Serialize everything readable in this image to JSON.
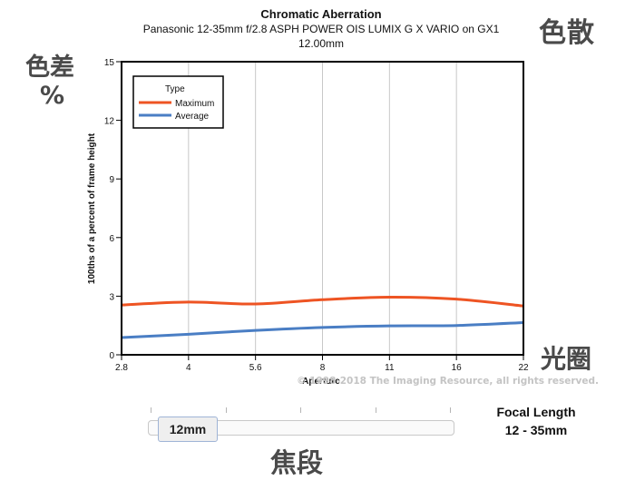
{
  "header": {
    "title": "Chromatic Aberration",
    "lens": "Panasonic 12-35mm f/2.8 ASPH POWER OIS LUMIX G X VARIO on GX1",
    "focal": "12.00mm"
  },
  "overlay": {
    "top_right": "色散",
    "top_left": "色差",
    "percent": "%",
    "right": "光圈",
    "bottom": "焦段"
  },
  "watermark": "© 1998-2018 The Imaging Resource, all rights reserved.",
  "slider": {
    "value": "12mm",
    "label": "Focal Length",
    "range": "12 - 35mm",
    "tick_count": 5,
    "position": 0
  },
  "colors": {
    "maximum": "#ee5423",
    "average": "#4a7ec4",
    "grid": "#c8c8c8",
    "frame": "#000000"
  },
  "chart_data": {
    "type": "line",
    "title": "Chromatic Aberration",
    "subtitle": "Panasonic 12-35mm f/2.8 ASPH POWER OIS LUMIX G X VARIO on GX1",
    "xlabel": "Aperture",
    "ylabel": "100ths of a percent of frame height",
    "x_ticks": [
      "2.8",
      "4",
      "5.6",
      "8",
      "11",
      "16",
      "22"
    ],
    "y_ticks": [
      0,
      3,
      6,
      9,
      12,
      15
    ],
    "ylim": [
      0,
      15
    ],
    "grid": "vertical",
    "legend": {
      "title": "Type",
      "position": "top-left"
    },
    "series": [
      {
        "name": "Maximum",
        "values": [
          2.55,
          2.7,
          2.6,
          2.82,
          2.95,
          2.85,
          2.5
        ]
      },
      {
        "name": "Average",
        "values": [
          0.88,
          1.05,
          1.25,
          1.4,
          1.48,
          1.5,
          1.65
        ]
      }
    ]
  }
}
